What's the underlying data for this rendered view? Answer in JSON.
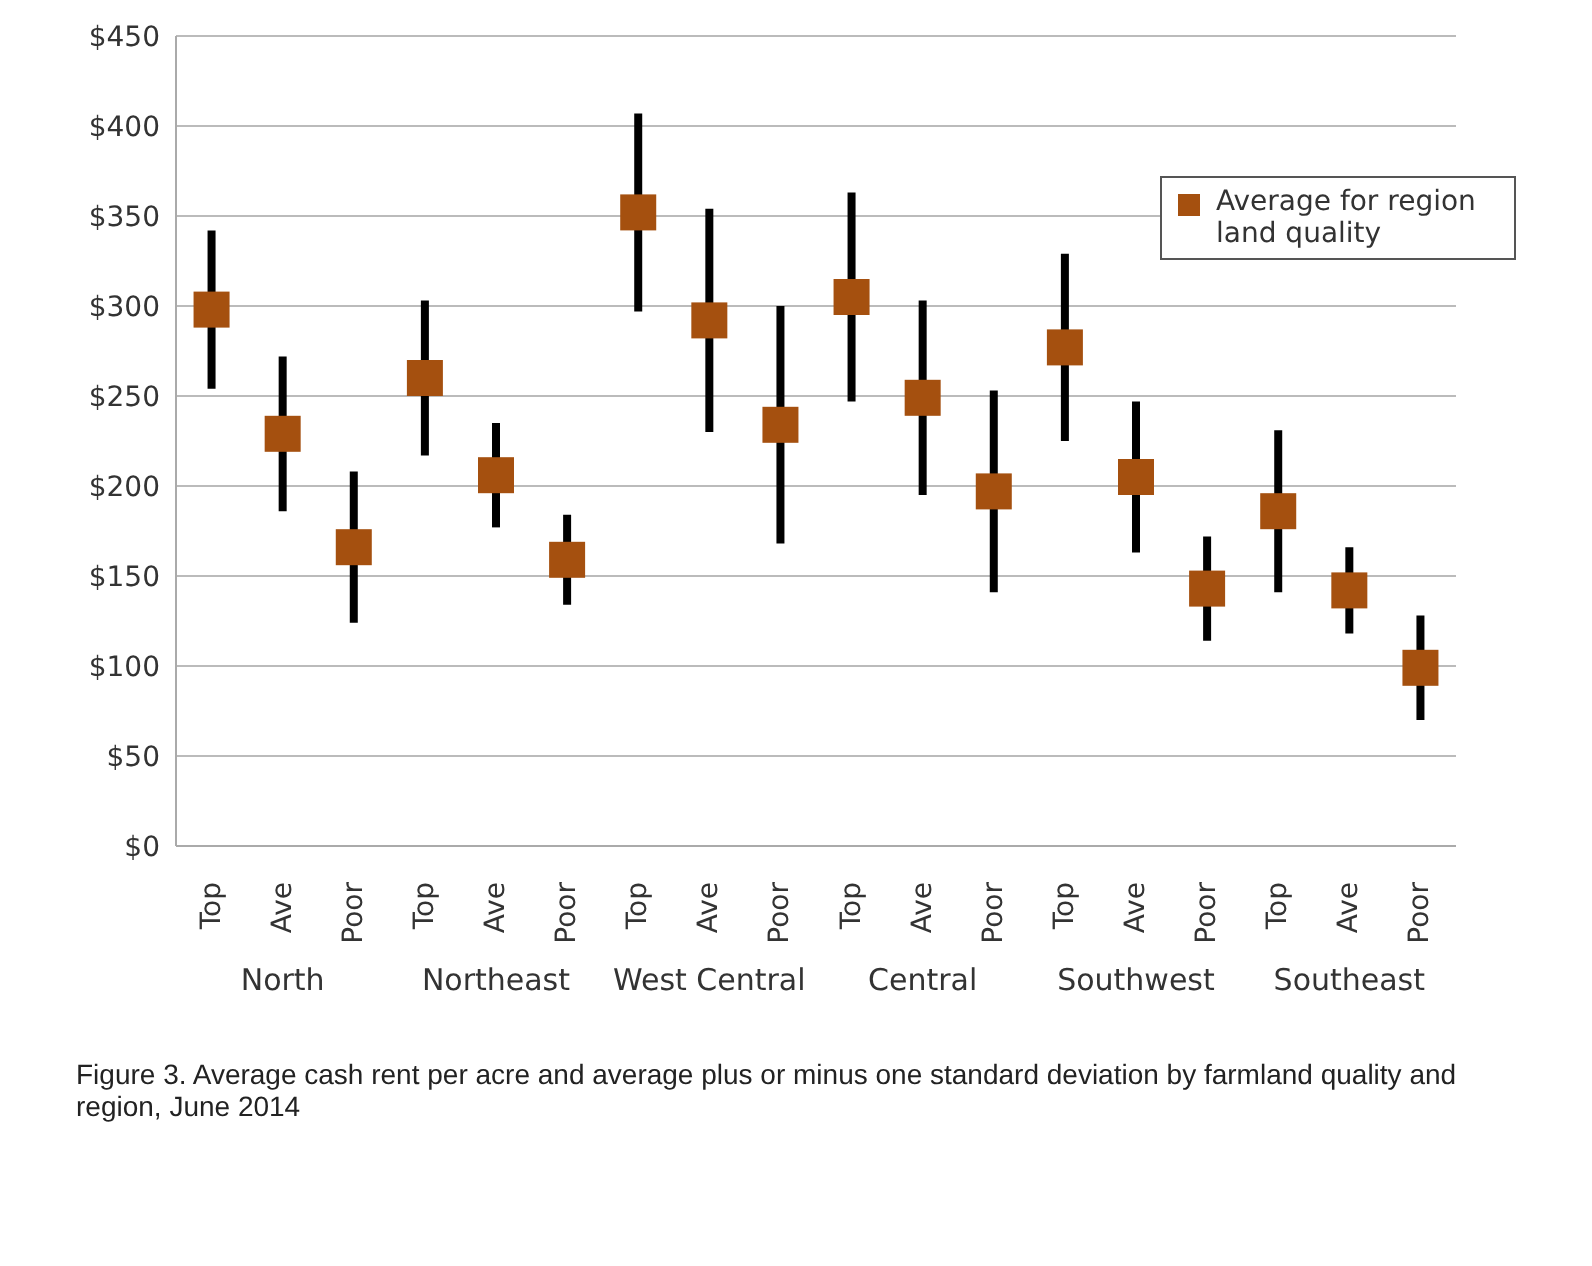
{
  "chart_data": {
    "type": "scatter",
    "title": "Figure 3. Average cash rent per acre and average plus or minus one standard deviation by farmland quality and region, June 2014",
    "categories": [
      "Top",
      "Ave",
      "Poor",
      "Top",
      "Ave",
      "Poor",
      "Top",
      "Ave",
      "Poor",
      "Top",
      "Ave",
      "Poor",
      "Top",
      "Ave",
      "Poor",
      "Top",
      "Ave",
      "Poor"
    ],
    "annotations": [
      "North",
      "Northeast",
      "West Central",
      "Central",
      "Southwest",
      "Southeast"
    ],
    "series": [
      {
        "name": "Average for region land quality",
        "color": "#a5500f",
        "values": [
          298,
          229,
          166,
          260,
          206,
          159,
          352,
          292,
          234,
          305,
          249,
          197,
          277,
          205,
          143,
          186,
          142,
          99
        ],
        "errors": [
          44,
          43,
          42,
          43,
          29,
          25,
          55,
          62,
          66,
          58,
          54,
          56,
          52,
          42,
          29,
          45,
          24,
          29
        ]
      }
    ],
    "ylim": [
      0,
      450
    ],
    "yticks": [
      {
        "value": 0,
        "label": "$0"
      },
      {
        "value": 50,
        "label": "$50"
      },
      {
        "value": 100,
        "label": "$100"
      },
      {
        "value": 150,
        "label": "$150"
      },
      {
        "value": 200,
        "label": "$200"
      },
      {
        "value": 250,
        "label": "$250"
      },
      {
        "value": 300,
        "label": "$300"
      },
      {
        "value": 350,
        "label": "$350"
      },
      {
        "value": 400,
        "label": "$400"
      },
      {
        "value": 450,
        "label": "$450"
      }
    ],
    "grid": "y",
    "legend": "top right",
    "marker": "square"
  }
}
